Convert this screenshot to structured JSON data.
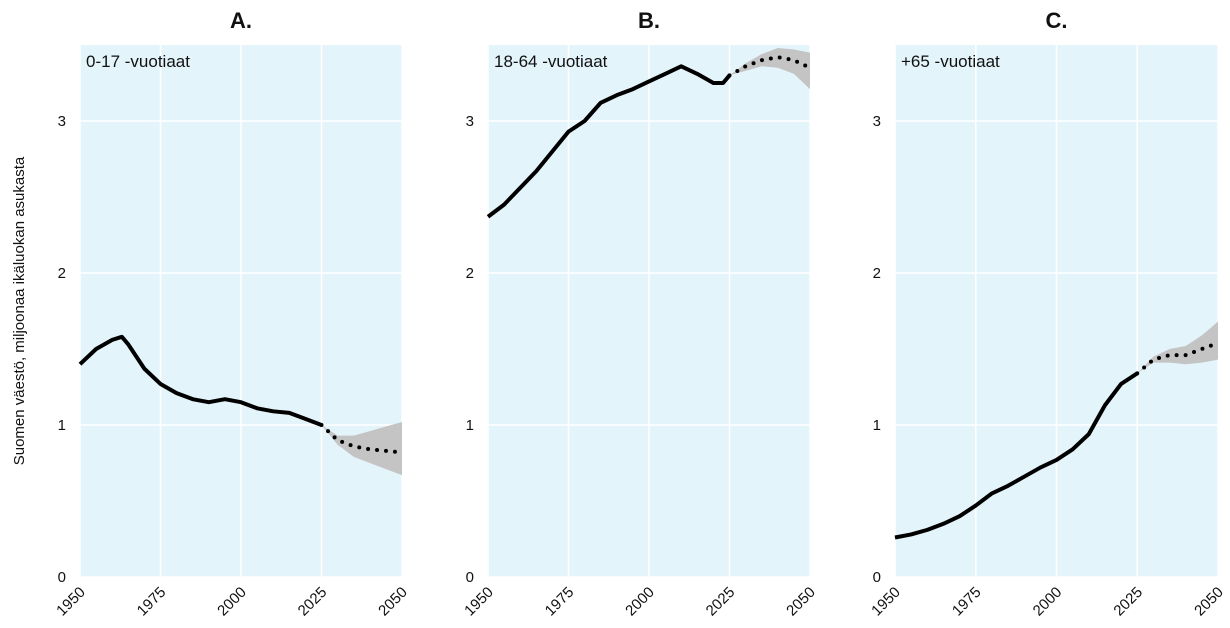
{
  "chart_data": [
    {
      "type": "line",
      "title": "A.",
      "annotation": "0-17 -vuotiaat",
      "ylabel": "Suomen väestö, miljoonaa ikäluokan asukasta",
      "x": [
        1950,
        1955,
        1960,
        1963,
        1965,
        1970,
        1975,
        1980,
        1985,
        1990,
        1995,
        2000,
        2005,
        2010,
        2015,
        2020,
        2025
      ],
      "values": [
        1.4,
        1.5,
        1.56,
        1.58,
        1.53,
        1.37,
        1.27,
        1.21,
        1.17,
        1.15,
        1.17,
        1.15,
        1.11,
        1.09,
        1.08,
        1.04,
        1.0
      ],
      "forecast_x": [
        2025,
        2030,
        2035,
        2040,
        2045,
        2050
      ],
      "forecast_values": [
        1.0,
        0.9,
        0.86,
        0.84,
        0.83,
        0.82
      ],
      "band_lower": [
        1.0,
        0.87,
        0.79,
        0.75,
        0.71,
        0.67
      ],
      "band_upper": [
        1.0,
        0.93,
        0.93,
        0.96,
        0.99,
        1.02
      ],
      "color": "#000000",
      "band_color": "#c4c4c4",
      "background": "#e4f4fb",
      "grid": true,
      "xlim": [
        1950,
        2050
      ],
      "ylim": [
        0,
        3.5
      ],
      "xticks": [
        1950,
        1975,
        2000,
        2025,
        2050
      ],
      "yticks": [
        0,
        1,
        2,
        3
      ]
    },
    {
      "type": "line",
      "title": "B.",
      "annotation": "18-64 -vuotiaat",
      "x": [
        1950,
        1955,
        1960,
        1965,
        1970,
        1975,
        1980,
        1985,
        1990,
        1995,
        2000,
        2005,
        2010,
        2015,
        2020,
        2023,
        2025
      ],
      "values": [
        2.37,
        2.45,
        2.56,
        2.67,
        2.8,
        2.93,
        3.0,
        3.12,
        3.17,
        3.21,
        3.26,
        3.31,
        3.36,
        3.31,
        3.25,
        3.25,
        3.3
      ],
      "forecast_x": [
        2025,
        2030,
        2035,
        2040,
        2045,
        2050
      ],
      "forecast_values": [
        3.3,
        3.36,
        3.4,
        3.42,
        3.4,
        3.35
      ],
      "band_lower": [
        3.3,
        3.33,
        3.36,
        3.35,
        3.31,
        3.21
      ],
      "band_upper": [
        3.3,
        3.38,
        3.44,
        3.48,
        3.47,
        3.45
      ],
      "color": "#000000",
      "band_color": "#c4c4c4",
      "background": "#e4f4fb",
      "grid": true,
      "xlim": [
        1950,
        2050
      ],
      "ylim": [
        0,
        3.5
      ],
      "xticks": [
        1950,
        1975,
        2000,
        2025,
        2050
      ],
      "yticks": [
        0,
        1,
        2,
        3
      ]
    },
    {
      "type": "line",
      "title": "C.",
      "annotation": "+65 -vuotiaat",
      "x": [
        1950,
        1955,
        1960,
        1965,
        1970,
        1975,
        1980,
        1985,
        1990,
        1995,
        2000,
        2005,
        2010,
        2015,
        2020,
        2025
      ],
      "values": [
        0.26,
        0.28,
        0.31,
        0.35,
        0.4,
        0.47,
        0.55,
        0.6,
        0.66,
        0.72,
        0.77,
        0.84,
        0.94,
        1.13,
        1.27,
        1.34
      ],
      "forecast_x": [
        2025,
        2030,
        2035,
        2040,
        2045,
        2050
      ],
      "forecast_values": [
        1.34,
        1.43,
        1.46,
        1.46,
        1.5,
        1.54
      ],
      "band_lower": [
        1.34,
        1.41,
        1.41,
        1.4,
        1.41,
        1.43
      ],
      "band_upper": [
        1.34,
        1.45,
        1.5,
        1.52,
        1.59,
        1.68
      ],
      "color": "#000000",
      "band_color": "#c4c4c4",
      "background": "#e4f4fb",
      "grid": true,
      "xlim": [
        1950,
        2050
      ],
      "ylim": [
        0,
        3.5
      ],
      "xticks": [
        1950,
        1975,
        2000,
        2025,
        2050
      ],
      "yticks": [
        0,
        1,
        2,
        3
      ]
    }
  ]
}
